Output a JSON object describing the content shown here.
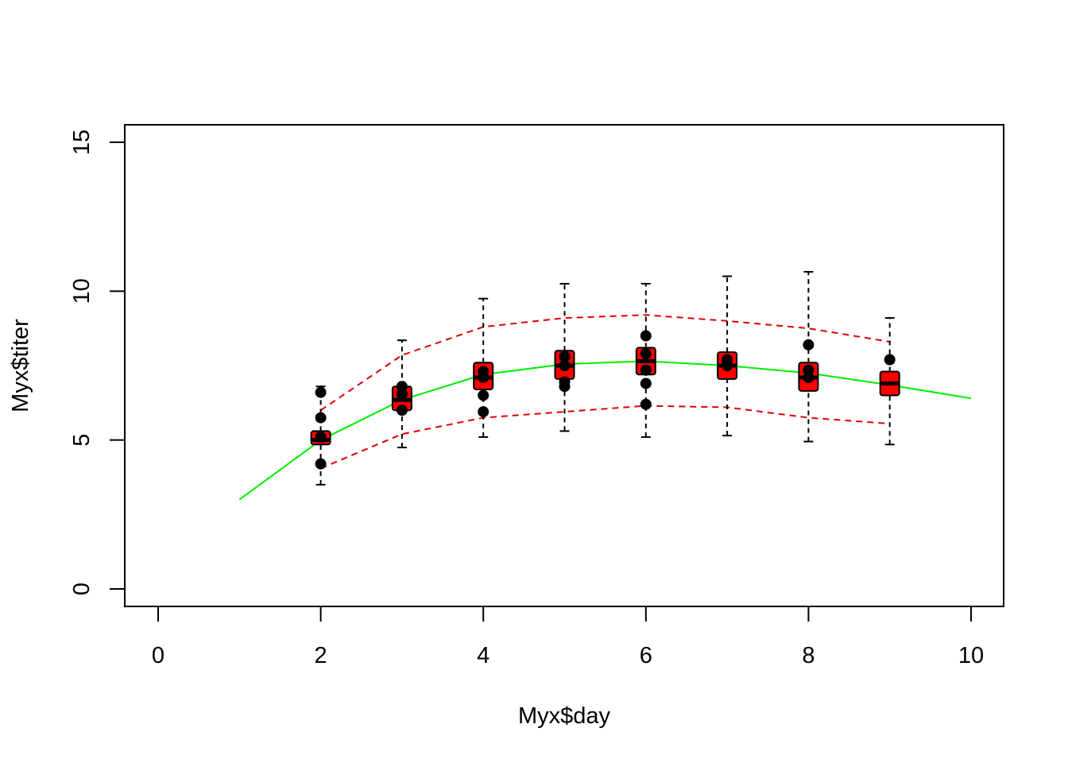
{
  "chart_data": {
    "type": "box",
    "title": "",
    "xlabel": "Myx$day",
    "ylabel": "Myx$titer",
    "xlim": [
      0,
      10
    ],
    "ylim": [
      0,
      15
    ],
    "x_ticks": [
      "0",
      "2",
      "4",
      "6",
      "8",
      "10"
    ],
    "y_ticks": [
      "0",
      "5",
      "10",
      "15"
    ],
    "grid": false,
    "legend": "none",
    "colors": {
      "box_fill": "#ff0000",
      "box_border": "#000000",
      "fit_line": "#00ee00",
      "interval_lines": "#e00000",
      "points": "#000000"
    },
    "boxes": [
      {
        "day": 2,
        "whisker_low": 3.5,
        "q1": 4.85,
        "median": 5.0,
        "q3": 5.3,
        "whisker_high": 6.8
      },
      {
        "day": 3,
        "whisker_low": 4.75,
        "q1": 6.0,
        "median": 6.35,
        "q3": 6.8,
        "whisker_high": 8.35
      },
      {
        "day": 4,
        "whisker_low": 5.1,
        "q1": 6.7,
        "median": 7.1,
        "q3": 7.6,
        "whisker_high": 9.75
      },
      {
        "day": 5,
        "whisker_low": 5.3,
        "q1": 7.05,
        "median": 7.5,
        "q3": 8.0,
        "whisker_high": 10.25
      },
      {
        "day": 6,
        "whisker_low": 5.1,
        "q1": 7.2,
        "median": 7.65,
        "q3": 8.1,
        "whisker_high": 10.25
      },
      {
        "day": 7,
        "whisker_low": 5.15,
        "q1": 7.05,
        "median": 7.5,
        "q3": 7.95,
        "whisker_high": 10.5
      },
      {
        "day": 8,
        "whisker_low": 4.95,
        "q1": 6.65,
        "median": 7.1,
        "q3": 7.6,
        "whisker_high": 10.65
      },
      {
        "day": 9,
        "whisker_low": 4.85,
        "q1": 6.5,
        "median": 6.9,
        "q3": 7.3,
        "whisker_high": 9.1
      }
    ],
    "points": [
      {
        "x": 2,
        "y": 6.6
      },
      {
        "x": 2,
        "y": 5.75
      },
      {
        "x": 2,
        "y": 5.1
      },
      {
        "x": 2,
        "y": 4.2
      },
      {
        "x": 3,
        "y": 6.8
      },
      {
        "x": 3,
        "y": 6.55
      },
      {
        "x": 3,
        "y": 6.0
      },
      {
        "x": 4,
        "y": 7.3
      },
      {
        "x": 4,
        "y": 7.1
      },
      {
        "x": 4,
        "y": 6.5
      },
      {
        "x": 4,
        "y": 5.95
      },
      {
        "x": 5,
        "y": 7.8
      },
      {
        "x": 5,
        "y": 7.5
      },
      {
        "x": 5,
        "y": 6.95
      },
      {
        "x": 5,
        "y": 6.8
      },
      {
        "x": 6,
        "y": 8.5
      },
      {
        "x": 6,
        "y": 7.9
      },
      {
        "x": 6,
        "y": 7.35
      },
      {
        "x": 6,
        "y": 6.9
      },
      {
        "x": 6,
        "y": 6.2
      },
      {
        "x": 7,
        "y": 7.7
      },
      {
        "x": 7,
        "y": 7.5
      },
      {
        "x": 8,
        "y": 8.2
      },
      {
        "x": 8,
        "y": 7.35
      },
      {
        "x": 8,
        "y": 7.1
      },
      {
        "x": 9,
        "y": 7.7
      }
    ],
    "series": [
      {
        "style": "solid",
        "x": [
          1,
          2,
          3,
          4,
          5,
          6,
          7,
          8,
          9,
          10
        ],
        "y": [
          3.0,
          5.0,
          6.35,
          7.2,
          7.55,
          7.65,
          7.5,
          7.25,
          6.85,
          6.4
        ]
      },
      {
        "style": "dashed",
        "x": [
          2,
          3,
          4,
          5,
          6,
          7,
          8,
          9
        ],
        "y": [
          6.0,
          7.85,
          8.8,
          9.1,
          9.2,
          9.0,
          8.75,
          8.3
        ]
      },
      {
        "style": "dashed",
        "x": [
          2,
          3,
          4,
          5,
          6,
          7,
          8,
          9
        ],
        "y": [
          4.05,
          5.2,
          5.75,
          5.95,
          6.15,
          6.1,
          5.75,
          5.55
        ]
      }
    ]
  }
}
